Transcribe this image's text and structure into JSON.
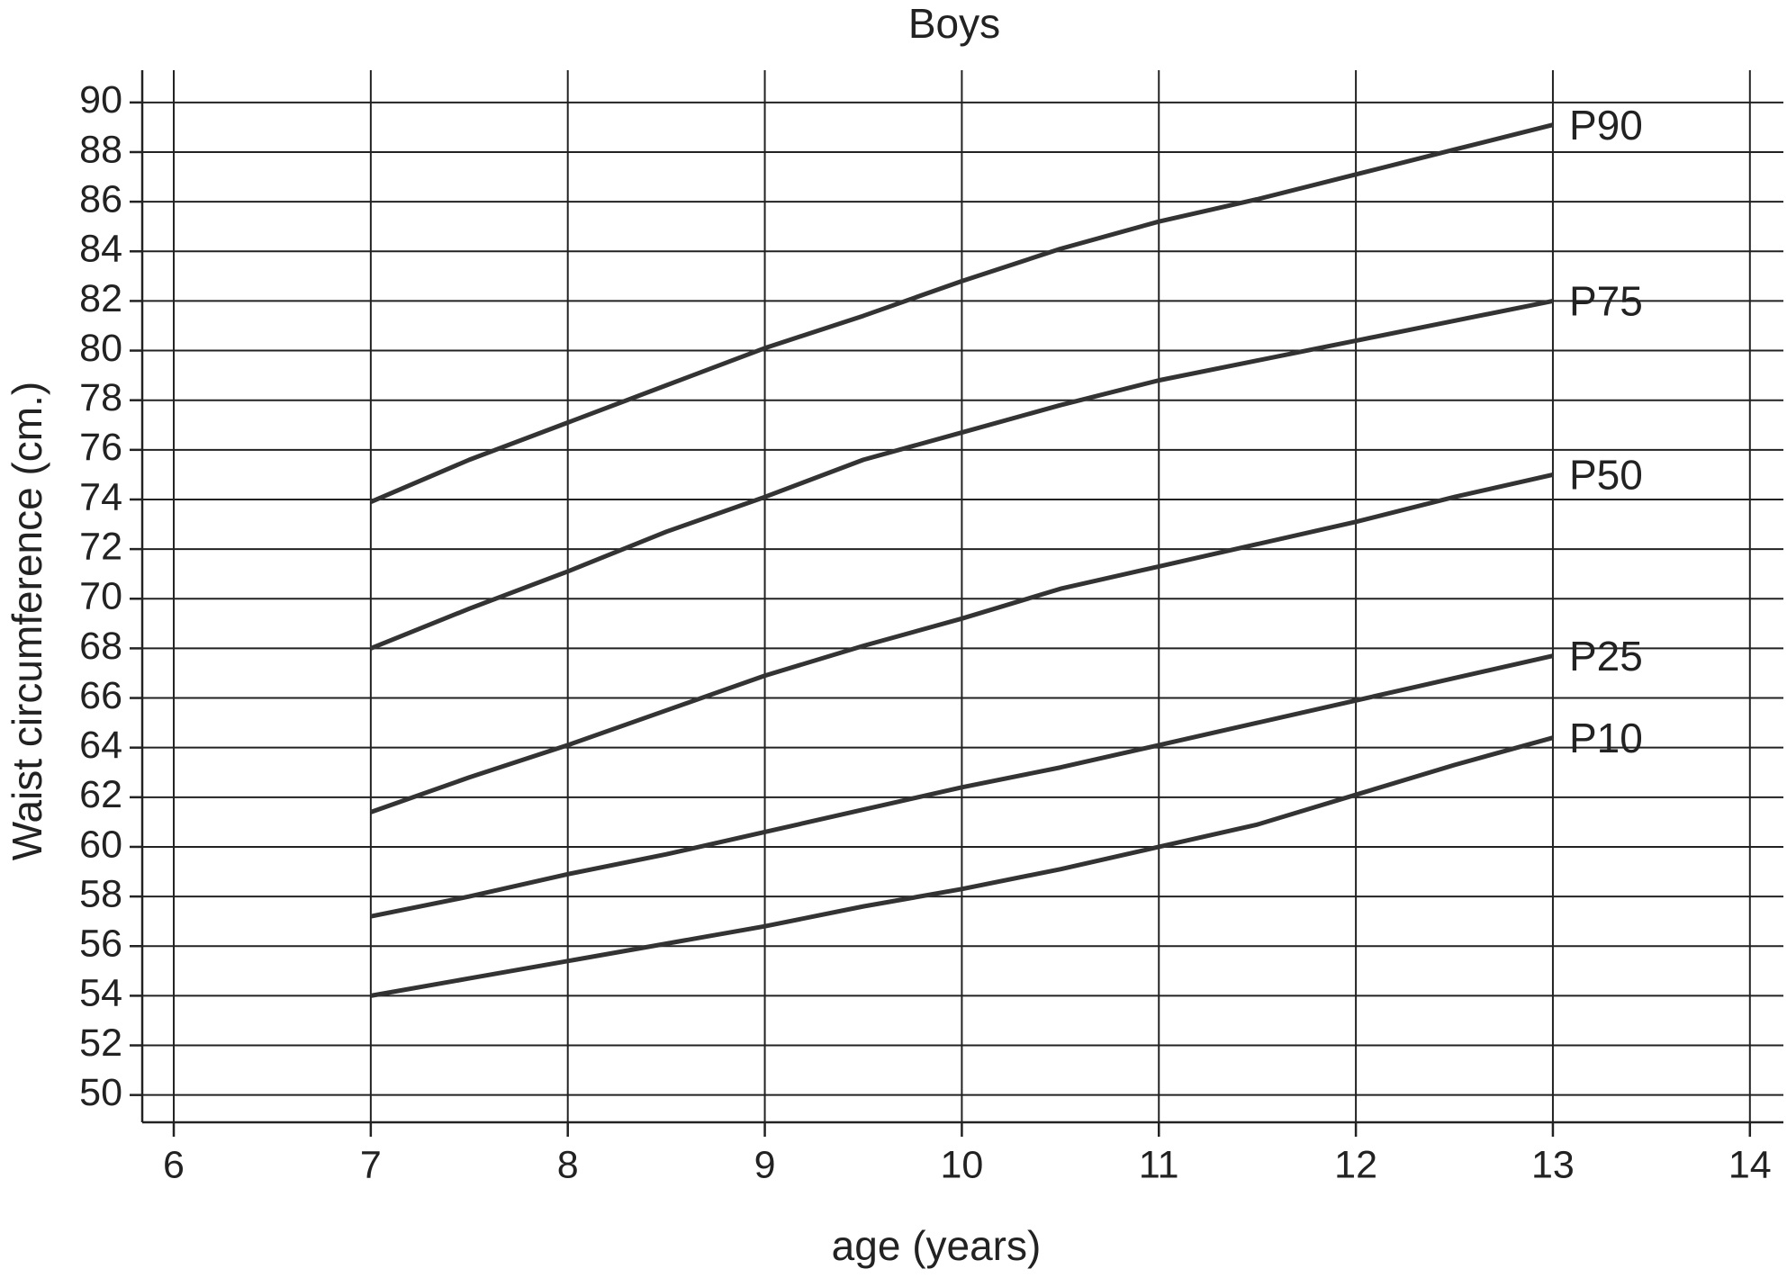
{
  "chart_data": {
    "type": "line",
    "title": "Boys",
    "x_label": "age (years)",
    "y_label": "Waist circumference (cm.)",
    "x": [
      7,
      7.5,
      8,
      8.5,
      9,
      9.5,
      10,
      10.5,
      11,
      11.5,
      12,
      12.5,
      13
    ],
    "series": [
      {
        "name": "P90",
        "color": "#333333",
        "values": [
          73.9,
          75.6,
          77.1,
          78.6,
          80.1,
          81.4,
          82.8,
          84.1,
          85.2,
          86.1,
          87.1,
          88.1,
          89.1
        ]
      },
      {
        "name": "P75",
        "color": "#333333",
        "values": [
          68,
          69.6,
          71.1,
          72.7,
          74.1,
          75.6,
          76.7,
          77.8,
          78.8,
          79.6,
          80.4,
          81.2,
          82
        ]
      },
      {
        "name": "P50",
        "color": "#333333",
        "values": [
          61.4,
          62.8,
          64.1,
          65.5,
          66.9,
          68.1,
          69.2,
          70.4,
          71.3,
          72.2,
          73.1,
          74.1,
          75
        ]
      },
      {
        "name": "P25",
        "color": "#333333",
        "values": [
          57.2,
          58,
          58.9,
          59.7,
          60.6,
          61.5,
          62.4,
          63.2,
          64.1,
          65,
          65.9,
          66.8,
          67.7
        ]
      },
      {
        "name": "P10",
        "color": "#333333",
        "values": [
          54,
          54.7,
          55.4,
          56.1,
          56.8,
          57.6,
          58.3,
          59.1,
          60,
          60.9,
          62.1,
          63.3,
          64.4
        ]
      }
    ],
    "xlim": [
      5.84,
      14.17
    ],
    "ylim": [
      48.9,
      91.3
    ],
    "xticks": [
      6,
      7,
      8,
      9,
      10,
      11,
      12,
      13,
      14
    ],
    "yticks": [
      50,
      52,
      54,
      56,
      58,
      60,
      62,
      64,
      66,
      68,
      70,
      72,
      74,
      76,
      78,
      80,
      82,
      84,
      86,
      88,
      90
    ],
    "grid": true
  }
}
